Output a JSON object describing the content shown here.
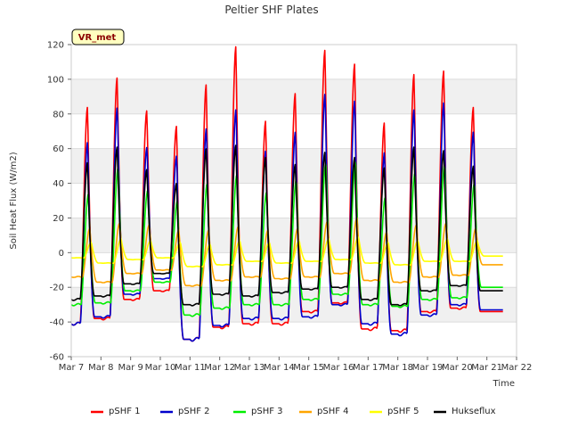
{
  "chart_data": {
    "type": "line",
    "title": "Peltier SHF Plates",
    "xlabel": "Time",
    "ylabel": "Soil Heat Flux (W/m2)",
    "badge": "VR_met",
    "xlim": [
      "2000-03-07",
      "2000-03-22"
    ],
    "ylim": [
      -60,
      120
    ],
    "xticks": [
      "Mar 7",
      "Mar 8",
      "Mar 9",
      "Mar 10",
      "Mar 11",
      "Mar 12",
      "Mar 13",
      "Mar 14",
      "Mar 15",
      "Mar 16",
      "Mar 17",
      "Mar 18",
      "Mar 19",
      "Mar 20",
      "Mar 21",
      "Mar 22"
    ],
    "yticks": [
      -60,
      -40,
      -20,
      0,
      20,
      40,
      60,
      80,
      100,
      120
    ],
    "grid": true,
    "shaded_bands": true,
    "legend_position": "bottom",
    "days": [
      "2000-03-07",
      "2000-03-08",
      "2000-03-09",
      "2000-03-10",
      "2000-03-11",
      "2000-03-12",
      "2000-03-13",
      "2000-03-14",
      "2000-03-15",
      "2000-03-16",
      "2000-03-17",
      "2000-03-18",
      "2000-03-19",
      "2000-03-20",
      "2000-03-21"
    ],
    "series": [
      {
        "name": "pSHF 1",
        "color": "#ff0000",
        "daily_max": [
          84,
          101,
          82,
          73,
          97,
          119,
          76,
          92,
          117,
          109,
          75,
          103,
          105,
          84,
          null
        ],
        "daily_min": [
          -41,
          -38,
          -27,
          -22,
          -50,
          -43,
          -41,
          -41,
          -34,
          -29,
          -44,
          -45,
          -34,
          -32,
          -34
        ]
      },
      {
        "name": "pSHF 2",
        "color": "#0000cc",
        "daily_max": [
          64,
          84,
          61,
          56,
          72,
          83,
          59,
          70,
          92,
          88,
          58,
          83,
          87,
          70,
          null
        ],
        "daily_min": [
          -41,
          -37,
          -24,
          -15,
          -50,
          -42,
          -38,
          -38,
          -37,
          -30,
          -41,
          -47,
          -36,
          -30,
          -33
        ]
      },
      {
        "name": "pSHF 3",
        "color": "#00ee00",
        "daily_max": [
          34,
          49,
          36,
          30,
          40,
          45,
          35,
          42,
          52,
          53,
          32,
          46,
          51,
          40,
          null
        ],
        "daily_min": [
          -30,
          -29,
          -22,
          -17,
          -36,
          -32,
          -30,
          -30,
          -27,
          -24,
          -30,
          -31,
          -27,
          -26,
          -20
        ]
      },
      {
        "name": "pSHF 4",
        "color": "#ffa500",
        "daily_max": [
          14,
          17,
          16,
          13,
          13,
          15,
          13,
          14,
          18,
          20,
          12,
          16,
          17,
          14,
          null
        ],
        "daily_min": [
          -14,
          -17,
          -12,
          -10,
          -19,
          -16,
          -14,
          -15,
          -14,
          -12,
          -16,
          -17,
          -14,
          -13,
          -7
        ]
      },
      {
        "name": "pSHF 5",
        "color": "#ffff00",
        "daily_max": [
          6,
          8,
          7,
          6,
          5,
          7,
          6,
          7,
          8,
          9,
          6,
          7,
          8,
          7,
          null
        ],
        "daily_min": [
          -3,
          -6,
          -4,
          -3,
          -8,
          -7,
          -5,
          -6,
          -5,
          -4,
          -6,
          -7,
          -5,
          -5,
          -2
        ]
      },
      {
        "name": "Hukseflux",
        "color": "#000000",
        "daily_max": [
          52,
          61,
          48,
          40,
          60,
          62,
          55,
          51,
          58,
          55,
          49,
          61,
          59,
          50,
          null
        ],
        "daily_min": [
          -27,
          -25,
          -18,
          -12,
          -30,
          -24,
          -25,
          -23,
          -21,
          -20,
          -27,
          -30,
          -22,
          -19,
          -22
        ]
      }
    ]
  }
}
